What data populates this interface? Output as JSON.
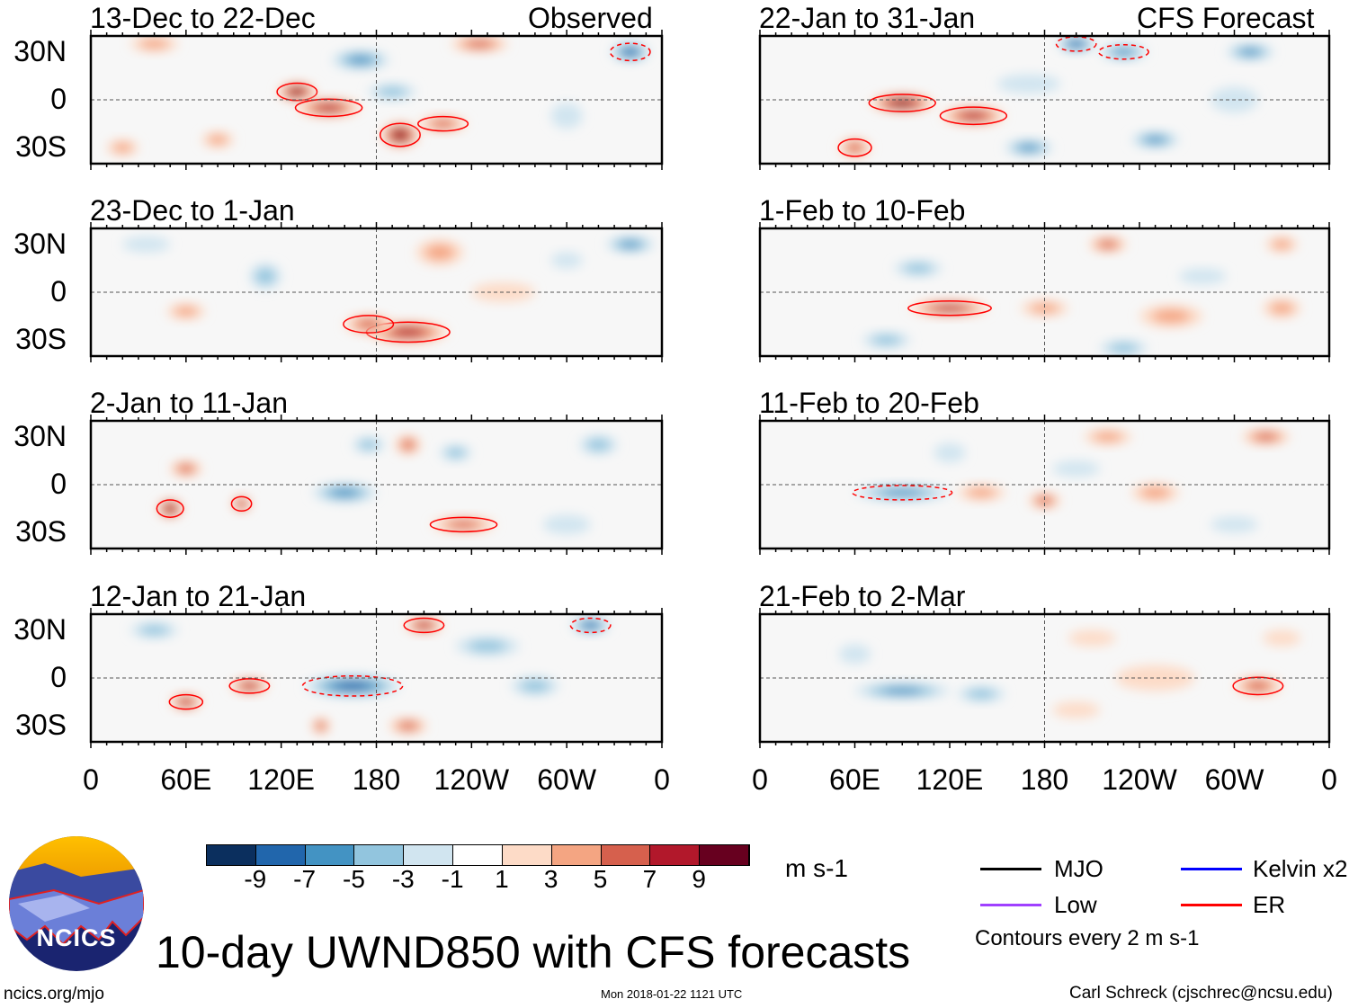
{
  "chart_data": {
    "type": "heatmap",
    "title": "10-day UWND850 with CFS forecasts",
    "variable": "UWND850",
    "units": "m s-1",
    "column_labels": [
      "Observed",
      "CFS Forecast"
    ],
    "lat_ticks": [
      "30N",
      "0",
      "30S"
    ],
    "lat_values": [
      30,
      0,
      -30
    ],
    "lon_ticks": [
      "0",
      "60E",
      "120E",
      "180",
      "120W",
      "60W",
      "0"
    ],
    "lon_values": [
      0,
      60,
      120,
      180,
      240,
      300,
      360
    ],
    "lat_range": [
      -40,
      40
    ],
    "colorbar": {
      "labels": [
        "-9",
        "-7",
        "-5",
        "-3",
        "-1",
        "1",
        "3",
        "5",
        "7",
        "9"
      ],
      "colors": [
        "#0b2f5e",
        "#2166ac",
        "#4393c3",
        "#92c5de",
        "#d1e5f0",
        "#ffffff",
        "#fddbc7",
        "#f4a582",
        "#d6604d",
        "#b2182b",
        "#67001f"
      ]
    },
    "panels": [
      {
        "column": 0,
        "row": 0,
        "title": "13-Dec to 22-Dec",
        "blobs": [
          [
            130,
            5,
            12,
            6,
            9
          ],
          [
            150,
            -5,
            20,
            6,
            7
          ],
          [
            195,
            -22,
            12,
            8,
            9
          ],
          [
            222,
            -15,
            15,
            5,
            6
          ],
          [
            40,
            35,
            15,
            5,
            4
          ],
          [
            245,
            35,
            18,
            5,
            5
          ],
          [
            170,
            25,
            18,
            6,
            -5
          ],
          [
            340,
            30,
            12,
            6,
            -7
          ],
          [
            190,
            5,
            15,
            5,
            -3
          ],
          [
            80,
            -25,
            10,
            5,
            3
          ],
          [
            20,
            -30,
            10,
            5,
            3
          ],
          [
            300,
            -10,
            10,
            8,
            -2
          ]
        ]
      },
      {
        "column": 0,
        "row": 1,
        "title": "23-Dec to 1-Jan",
        "blobs": [
          [
            200,
            -25,
            25,
            7,
            8
          ],
          [
            175,
            -20,
            15,
            6,
            6
          ],
          [
            220,
            25,
            15,
            8,
            3
          ],
          [
            340,
            30,
            15,
            5,
            -5
          ],
          [
            60,
            -12,
            12,
            5,
            3
          ],
          [
            110,
            10,
            10,
            8,
            -4
          ],
          [
            260,
            0,
            20,
            6,
            2
          ],
          [
            35,
            30,
            15,
            5,
            -2
          ],
          [
            300,
            20,
            10,
            5,
            -2
          ]
        ]
      },
      {
        "column": 0,
        "row": 2,
        "title": "2-Jan to 11-Jan",
        "blobs": [
          [
            50,
            -15,
            8,
            6,
            9
          ],
          [
            95,
            -12,
            6,
            5,
            8
          ],
          [
            60,
            10,
            10,
            5,
            5
          ],
          [
            160,
            -5,
            20,
            6,
            -5
          ],
          [
            235,
            -25,
            20,
            5,
            6
          ],
          [
            200,
            25,
            8,
            6,
            5
          ],
          [
            175,
            25,
            10,
            5,
            -3
          ],
          [
            320,
            25,
            12,
            6,
            -4
          ],
          [
            230,
            20,
            10,
            5,
            -3
          ],
          [
            300,
            -25,
            15,
            6,
            -2
          ]
        ]
      },
      {
        "column": 0,
        "row": 3,
        "title": "12-Jan to 21-Jan",
        "blobs": [
          [
            60,
            -15,
            10,
            5,
            8
          ],
          [
            100,
            -5,
            12,
            5,
            8
          ],
          [
            165,
            -5,
            30,
            7,
            -7
          ],
          [
            210,
            33,
            12,
            5,
            7
          ],
          [
            315,
            33,
            12,
            5,
            -8
          ],
          [
            145,
            -30,
            6,
            5,
            5
          ],
          [
            200,
            -30,
            12,
            5,
            5
          ],
          [
            250,
            20,
            20,
            6,
            -4
          ],
          [
            40,
            30,
            15,
            5,
            -3
          ],
          [
            280,
            -5,
            15,
            6,
            -3
          ]
        ]
      },
      {
        "column": 1,
        "row": 0,
        "title": "22-Jan to 31-Jan",
        "blobs": [
          [
            90,
            -2,
            20,
            6,
            9
          ],
          [
            135,
            -10,
            20,
            6,
            8
          ],
          [
            60,
            -30,
            10,
            6,
            6
          ],
          [
            200,
            35,
            12,
            5,
            -7
          ],
          [
            230,
            30,
            15,
            5,
            -6
          ],
          [
            310,
            30,
            15,
            5,
            -5
          ],
          [
            170,
            -30,
            15,
            5,
            -5
          ],
          [
            250,
            -25,
            15,
            5,
            -5
          ],
          [
            170,
            10,
            20,
            6,
            -2
          ],
          [
            300,
            0,
            15,
            8,
            -2
          ]
        ]
      },
      {
        "column": 1,
        "row": 1,
        "title": "1-Feb to 10-Feb",
        "blobs": [
          [
            120,
            -10,
            25,
            5,
            7
          ],
          [
            180,
            -10,
            15,
            5,
            4
          ],
          [
            220,
            30,
            12,
            5,
            5
          ],
          [
            330,
            -10,
            12,
            6,
            4
          ],
          [
            260,
            -15,
            20,
            7,
            3
          ],
          [
            100,
            15,
            15,
            5,
            -3
          ],
          [
            280,
            10,
            15,
            5,
            -2
          ],
          [
            80,
            -30,
            15,
            5,
            -3
          ],
          [
            230,
            -35,
            15,
            5,
            -3
          ],
          [
            330,
            30,
            10,
            5,
            4
          ]
        ]
      },
      {
        "column": 1,
        "row": 2,
        "title": "11-Feb to 20-Feb",
        "blobs": [
          [
            90,
            -5,
            30,
            5,
            -6
          ],
          [
            140,
            -5,
            15,
            5,
            4
          ],
          [
            180,
            -10,
            10,
            5,
            5
          ],
          [
            220,
            30,
            15,
            5,
            4
          ],
          [
            320,
            30,
            15,
            5,
            5
          ],
          [
            250,
            -5,
            15,
            6,
            3
          ],
          [
            200,
            10,
            15,
            5,
            -2
          ],
          [
            120,
            20,
            10,
            6,
            -2
          ],
          [
            300,
            -25,
            15,
            5,
            -2
          ]
        ]
      },
      {
        "column": 1,
        "row": 3,
        "title": "21-Feb to 2-Mar",
        "blobs": [
          [
            90,
            -8,
            30,
            5,
            -5
          ],
          [
            140,
            -10,
            15,
            5,
            -3
          ],
          [
            315,
            -5,
            15,
            6,
            6
          ],
          [
            250,
            0,
            25,
            8,
            2
          ],
          [
            210,
            25,
            15,
            5,
            2
          ],
          [
            330,
            25,
            12,
            5,
            2
          ],
          [
            200,
            -20,
            15,
            5,
            2
          ],
          [
            60,
            15,
            10,
            6,
            -2
          ]
        ]
      }
    ]
  },
  "footer": {
    "logo_text": "NCICS",
    "url": "ncics.org/mjo",
    "timestamp": "Mon 2018-01-22 1121 UTC",
    "author": "Carl Schreck (cjschrec@ncsu.edu)",
    "contour_note": "Contours every 2 m s-1"
  },
  "legend": [
    {
      "label": "MJO",
      "color": "#000000"
    },
    {
      "label": "Low",
      "color": "#a040ff"
    },
    {
      "label": "Kelvin x2",
      "color": "#0000ff"
    },
    {
      "label": "ER",
      "color": "#ff0000"
    }
  ]
}
